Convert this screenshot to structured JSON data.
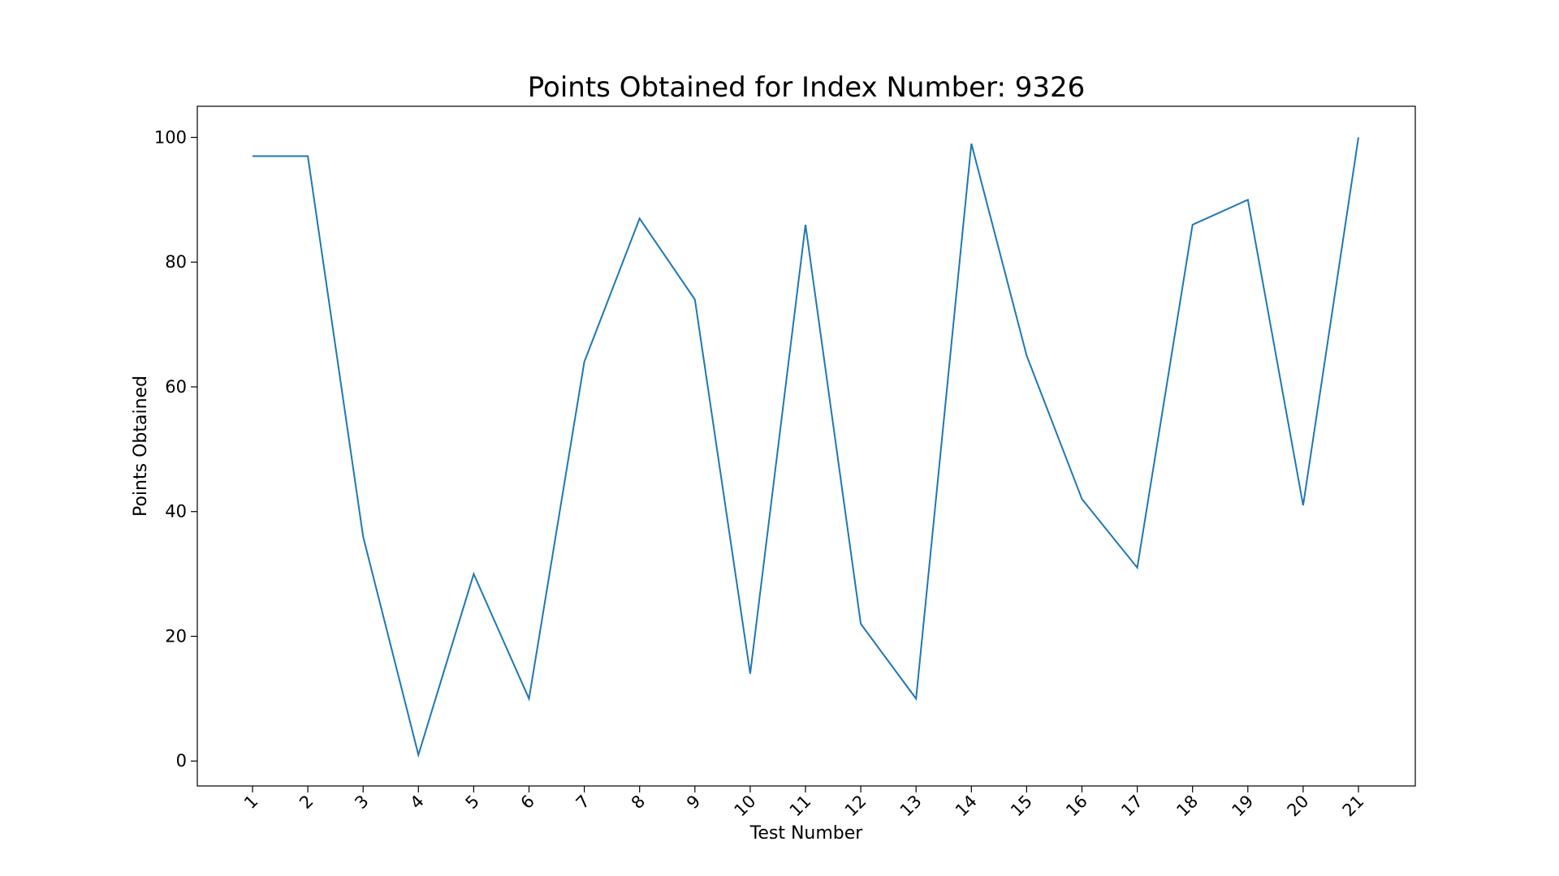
{
  "chart_data": {
    "type": "line",
    "title": "Points Obtained for Index Number: 9326",
    "xlabel": "Test Number",
    "ylabel": "Points Obtained",
    "categories": [
      "1",
      "2",
      "3",
      "4",
      "5",
      "6",
      "7",
      "8",
      "9",
      "10",
      "11",
      "12",
      "13",
      "14",
      "15",
      "16",
      "17",
      "18",
      "19",
      "20",
      "21"
    ],
    "series": [
      {
        "values": [
          97,
          97,
          36,
          1,
          30,
          10,
          64,
          87,
          74,
          14,
          86,
          22,
          10,
          99,
          65,
          42,
          31,
          86,
          90,
          41,
          100
        ],
        "color": "#1f77b4"
      }
    ],
    "ylim": [
      -4,
      105
    ],
    "yticks": [
      0,
      20,
      40,
      60,
      80,
      100
    ],
    "xtick_rotation": "45deg",
    "grid": false,
    "legend": "none"
  }
}
